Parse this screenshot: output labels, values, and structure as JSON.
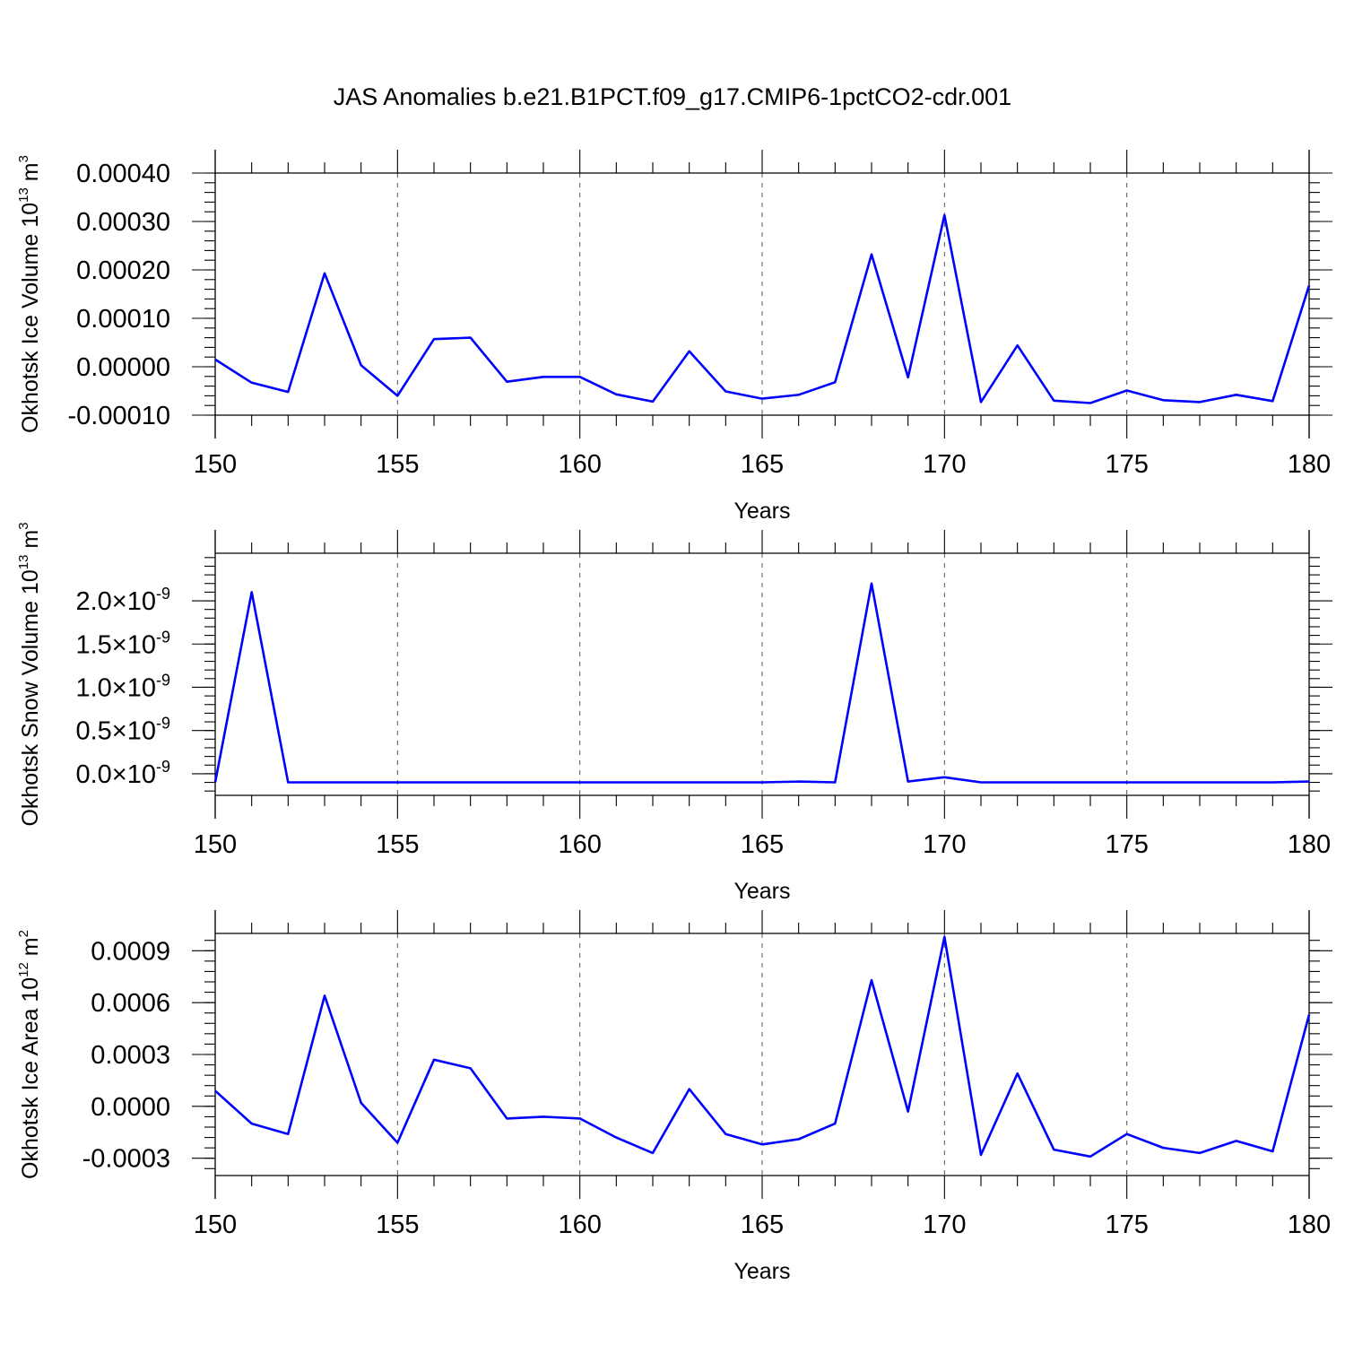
{
  "figure": {
    "title": "JAS Anomalies b.e21.B1PCT.f09_g17.CMIP6-1pctCO2-cdr.001"
  },
  "chart_data": [
    {
      "type": "line",
      "xlabel": "Years",
      "ylabel": "Okhotsk Ice Volume 10",
      "ylabel_exp": "13",
      "ylabel_unit": " m",
      "ylabel_unit_exp": "3",
      "xlim": [
        150,
        180
      ],
      "ylim": [
        -0.0001,
        0.0004
      ],
      "x_ticks": [
        "150",
        "155",
        "160",
        "165",
        "170",
        "175",
        "180"
      ],
      "y_ticks": [
        {
          "value": -0.0001,
          "label": "-0.00010"
        },
        {
          "value": 0.0,
          "label": "0.00000"
        },
        {
          "value": 0.0001,
          "label": "0.00010"
        },
        {
          "value": 0.0002,
          "label": "0.00020"
        },
        {
          "value": 0.0003,
          "label": "0.00030"
        },
        {
          "value": 0.0004,
          "label": "0.00040"
        }
      ],
      "grid": "vertical dashed at major x ticks",
      "color": "#0000ff",
      "x": [
        150,
        151,
        152,
        153,
        154,
        155,
        156,
        157,
        158,
        159,
        160,
        161,
        162,
        163,
        164,
        165,
        166,
        167,
        168,
        169,
        170,
        171,
        172,
        173,
        174,
        175,
        176,
        177,
        178,
        179,
        180
      ],
      "values": [
        1.5e-05,
        -3.3e-05,
        -5.2e-05,
        0.000193,
        3e-06,
        -6e-05,
        5.7e-05,
        6e-05,
        -3.1e-05,
        -2.1e-05,
        -2.1e-05,
        -5.7e-05,
        -7.2e-05,
        3.2e-05,
        -5.1e-05,
        -6.6e-05,
        -5.8e-05,
        -3.2e-05,
        0.000232,
        -2.2e-05,
        0.000313,
        -7.3e-05,
        4.4e-05,
        -7e-05,
        -7.5e-05,
        -4.9e-05,
        -6.9e-05,
        -7.3e-05,
        -5.8e-05,
        -7.1e-05,
        0.000168
      ]
    },
    {
      "type": "line",
      "xlabel": "Years",
      "ylabel": "Okhotsk Snow Volume 10",
      "ylabel_exp": "13",
      "ylabel_unit": " m",
      "ylabel_unit_exp": "3",
      "xlim": [
        150,
        180
      ],
      "ylim": [
        -2.5e-10,
        2.55e-09
      ],
      "x_ticks": [
        "150",
        "155",
        "160",
        "165",
        "170",
        "175",
        "180"
      ],
      "y_ticks": [
        {
          "value": 0.0,
          "mant": "0.0",
          "exp": "-9"
        },
        {
          "value": 5e-10,
          "mant": "0.5",
          "exp": "-9"
        },
        {
          "value": 1e-09,
          "mant": "1.0",
          "exp": "-9"
        },
        {
          "value": 1.5e-09,
          "mant": "1.5",
          "exp": "-9"
        },
        {
          "value": 2e-09,
          "mant": "2.0",
          "exp": "-9"
        }
      ],
      "grid": "vertical dashed at major x ticks",
      "color": "#0000ff",
      "x": [
        150,
        151,
        152,
        153,
        154,
        155,
        156,
        157,
        158,
        159,
        160,
        161,
        162,
        163,
        164,
        165,
        166,
        167,
        168,
        169,
        170,
        171,
        172,
        173,
        174,
        175,
        176,
        177,
        178,
        179,
        180
      ],
      "values": [
        -1e-10,
        2.1e-09,
        -1e-10,
        -1e-10,
        -1e-10,
        -1e-10,
        -1e-10,
        -1e-10,
        -1e-10,
        -1e-10,
        -1e-10,
        -1e-10,
        -1e-10,
        -1e-10,
        -1e-10,
        -1e-10,
        -9e-11,
        -1e-10,
        2.2e-09,
        -9e-11,
        -4e-11,
        -1e-10,
        -1e-10,
        -1e-10,
        -1e-10,
        -1e-10,
        -1e-10,
        -1e-10,
        -1e-10,
        -1e-10,
        -9e-11
      ]
    },
    {
      "type": "line",
      "xlabel": "Years",
      "ylabel": "Okhotsk Ice Area 10",
      "ylabel_exp": "12",
      "ylabel_unit": " m",
      "ylabel_unit_exp": "2",
      "xlim": [
        150,
        180
      ],
      "ylim": [
        -0.0004,
        0.001
      ],
      "x_ticks": [
        "150",
        "155",
        "160",
        "165",
        "170",
        "175",
        "180"
      ],
      "y_ticks": [
        {
          "value": -0.0003,
          "label": "-0.0003"
        },
        {
          "value": 0.0,
          "label": "0.0000"
        },
        {
          "value": 0.0003,
          "label": "0.0003"
        },
        {
          "value": 0.0006,
          "label": "0.0006"
        },
        {
          "value": 0.0009,
          "label": "0.0009"
        }
      ],
      "grid": "vertical dashed at major x ticks",
      "color": "#0000ff",
      "x": [
        150,
        151,
        152,
        153,
        154,
        155,
        156,
        157,
        158,
        159,
        160,
        161,
        162,
        163,
        164,
        165,
        166,
        167,
        168,
        169,
        170,
        171,
        172,
        173,
        174,
        175,
        176,
        177,
        178,
        179,
        180
      ],
      "values": [
        9e-05,
        -0.0001,
        -0.00016,
        0.00064,
        2e-05,
        -0.00021,
        0.00027,
        0.00022,
        -7e-05,
        -6e-05,
        -7e-05,
        -0.00018,
        -0.00027,
        0.0001,
        -0.00016,
        -0.00022,
        -0.00019,
        -0.0001,
        0.00073,
        -3e-05,
        0.00098,
        -0.00028,
        0.00019,
        -0.00025,
        -0.00029,
        -0.00016,
        -0.00024,
        -0.00027,
        -0.0002,
        -0.00026,
        0.00053
      ]
    }
  ]
}
